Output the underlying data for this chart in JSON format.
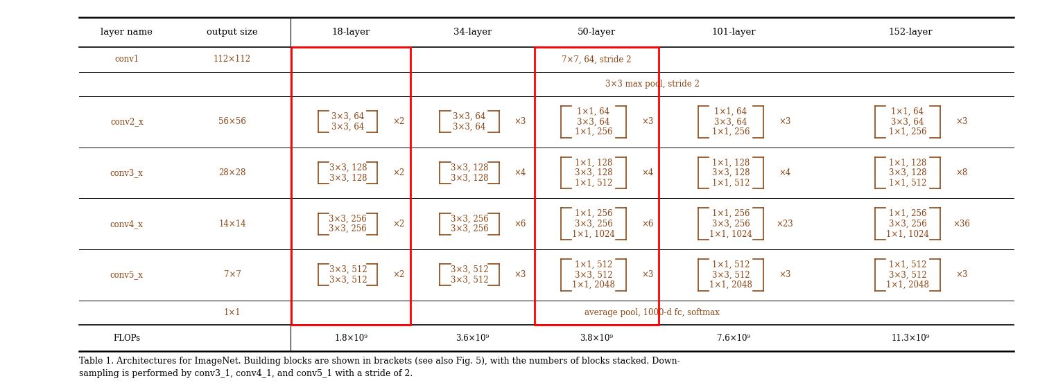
{
  "figsize": [
    15.23,
    5.53
  ],
  "dpi": 100,
  "background_color": "#ffffff",
  "title_text": "Table 1. Architectures for ImageNet. Building blocks are shown in brackets (see also Fig. 5), with the numbers of blocks stacked. Down-\nsampling is performed by conv3_1, conv4_1, and conv5_1 with a stride of 2.",
  "col_headers": [
    "layer name",
    "output size",
    "18-layer",
    "34-layer",
    "50-layer",
    "101-layer",
    "152-layer"
  ],
  "rows": [
    {
      "name": "conv2_x",
      "size": "56×56",
      "cells": [
        {
          "lines": [
            "3×3, 64",
            "3×3, 64"
          ],
          "repeat": "×2"
        },
        {
          "lines": [
            "3×3, 64",
            "3×3, 64"
          ],
          "repeat": "×3"
        },
        {
          "lines": [
            "1×1, 64",
            "3×3, 64",
            "1×1, 256"
          ],
          "repeat": "×3"
        },
        {
          "lines": [
            "1×1, 64",
            "3×3, 64",
            "1×1, 256"
          ],
          "repeat": "×3"
        },
        {
          "lines": [
            "1×1, 64",
            "3×3, 64",
            "1×1, 256"
          ],
          "repeat": "×3"
        }
      ]
    },
    {
      "name": "conv3_x",
      "size": "28×28",
      "cells": [
        {
          "lines": [
            "3×3, 128",
            "3×3, 128"
          ],
          "repeat": "×2"
        },
        {
          "lines": [
            "3×3, 128",
            "3×3, 128"
          ],
          "repeat": "×4"
        },
        {
          "lines": [
            "1×1, 128",
            "3×3, 128",
            "1×1, 512"
          ],
          "repeat": "×4"
        },
        {
          "lines": [
            "1×1, 128",
            "3×3, 128",
            "1×1, 512"
          ],
          "repeat": "×4"
        },
        {
          "lines": [
            "1×1, 128",
            "3×3, 128",
            "1×1, 512"
          ],
          "repeat": "×8"
        }
      ]
    },
    {
      "name": "conv4_x",
      "size": "14×14",
      "cells": [
        {
          "lines": [
            "3×3, 256",
            "3×3, 256"
          ],
          "repeat": "×2"
        },
        {
          "lines": [
            "3×3, 256",
            "3×3, 256"
          ],
          "repeat": "×6"
        },
        {
          "lines": [
            "1×1, 256",
            "3×3, 256",
            "1×1, 1024"
          ],
          "repeat": "×6"
        },
        {
          "lines": [
            "1×1, 256",
            "3×3, 256",
            "1×1, 1024"
          ],
          "repeat": "×23"
        },
        {
          "lines": [
            "1×1, 256",
            "3×3, 256",
            "1×1, 1024"
          ],
          "repeat": "×36"
        }
      ]
    },
    {
      "name": "conv5_x",
      "size": "7×7",
      "cells": [
        {
          "lines": [
            "3×3, 512",
            "3×3, 512"
          ],
          "repeat": "×2"
        },
        {
          "lines": [
            "3×3, 512",
            "3×3, 512"
          ],
          "repeat": "×3"
        },
        {
          "lines": [
            "1×1, 512",
            "3×3, 512",
            "1×1, 2048"
          ],
          "repeat": "×3"
        },
        {
          "lines": [
            "1×1, 512",
            "3×3, 512",
            "1×1, 2048"
          ],
          "repeat": "×3"
        },
        {
          "lines": [
            "1×1, 512",
            "3×3, 512",
            "1×1, 2048"
          ],
          "repeat": "×3"
        }
      ]
    }
  ],
  "flops": [
    "FLOPs",
    "1.8×10⁹",
    "3.6×10⁹",
    "3.8×10⁹",
    "7.6×10⁹",
    "11.3×10⁹"
  ],
  "text_color": "#8B4513",
  "header_color": "#000000",
  "bracket_color": "#8B4513",
  "red_box_color": "#ff0000",
  "line_color": "#000000",
  "font_size": 8.5,
  "header_font_size": 9.5
}
